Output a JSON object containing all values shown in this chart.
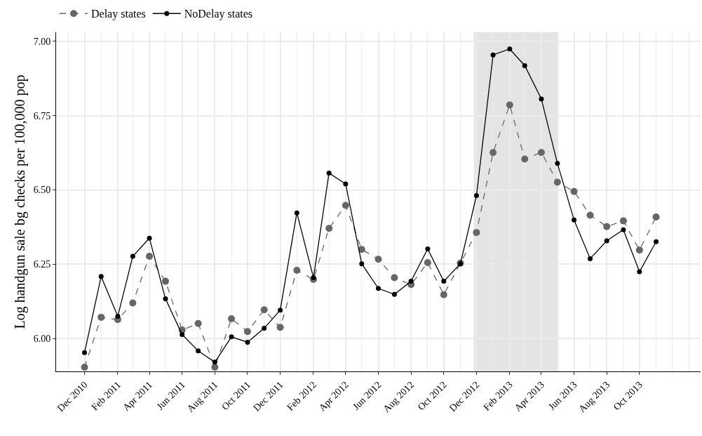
{
  "chart_data": {
    "type": "line",
    "ylabel": "Log handgun sale bg checks per 100,000 pop",
    "x": [
      "2010-12",
      "2011-01",
      "2011-02",
      "2011-03",
      "2011-04",
      "2011-05",
      "2011-06",
      "2011-07",
      "2011-08",
      "2011-09",
      "2011-10",
      "2011-11",
      "2011-12",
      "2012-01",
      "2012-02",
      "2012-03",
      "2012-04",
      "2012-05",
      "2012-06",
      "2012-07",
      "2012-08",
      "2012-09",
      "2012-10",
      "2012-11",
      "2012-12",
      "2013-01",
      "2013-02",
      "2013-03",
      "2013-04",
      "2013-05",
      "2013-06",
      "2013-07",
      "2013-08",
      "2013-09",
      "2013-10",
      "2013-11"
    ],
    "series": [
      {
        "name": "Delay states",
        "color": "#666666",
        "line_style": "dashed",
        "values": [
          5.904,
          6.072,
          6.064,
          6.12,
          6.277,
          6.193,
          6.029,
          6.051,
          5.904,
          6.067,
          6.024,
          6.097,
          6.038,
          6.23,
          6.199,
          6.371,
          6.448,
          6.3,
          6.267,
          6.205,
          6.182,
          6.256,
          6.148,
          6.254,
          6.357,
          6.626,
          6.786,
          6.604,
          6.626,
          6.526,
          6.495,
          6.415,
          6.377,
          6.396,
          6.298,
          6.409
        ]
      },
      {
        "name": "NoDelay states",
        "color": "#000000",
        "line_style": "solid",
        "values": [
          5.953,
          6.209,
          6.075,
          6.277,
          6.338,
          6.134,
          6.014,
          5.959,
          5.921,
          6.006,
          5.988,
          6.035,
          6.096,
          6.423,
          6.205,
          6.557,
          6.52,
          6.252,
          6.169,
          6.149,
          6.193,
          6.302,
          6.193,
          6.252,
          6.481,
          6.954,
          6.974,
          6.918,
          6.806,
          6.589,
          6.399,
          6.269,
          6.329,
          6.366,
          6.225,
          6.326
        ]
      }
    ],
    "xlim": [
      "2010-10-09",
      "2014-01-23"
    ],
    "xticks": [
      {
        "value": "2010-12",
        "label": "Dec 2010"
      },
      {
        "value": "2011-02",
        "label": "Feb 2011"
      },
      {
        "value": "2011-04",
        "label": "Apr 2011"
      },
      {
        "value": "2011-06",
        "label": "Jun 2011"
      },
      {
        "value": "2011-08",
        "label": "Aug 2011"
      },
      {
        "value": "2011-10",
        "label": "Oct 2011"
      },
      {
        "value": "2011-12",
        "label": "Dec 2011"
      },
      {
        "value": "2012-02",
        "label": "Feb 2012"
      },
      {
        "value": "2012-04",
        "label": "Apr 2012"
      },
      {
        "value": "2012-06",
        "label": "Jun 2012"
      },
      {
        "value": "2012-08",
        "label": "Aug 2012"
      },
      {
        "value": "2012-10",
        "label": "Oct 2012"
      },
      {
        "value": "2012-12",
        "label": "Dec 2012"
      },
      {
        "value": "2013-02",
        "label": "Feb 2013"
      },
      {
        "value": "2013-04",
        "label": "Apr 2013"
      },
      {
        "value": "2013-06",
        "label": "Jun 2013"
      },
      {
        "value": "2013-08",
        "label": "Aug 2013"
      },
      {
        "value": "2013-10",
        "label": "Oct 2013"
      }
    ],
    "ylim": [
      5.89,
      7.03
    ],
    "yticks": [
      {
        "value": 6,
        "label": "6.00"
      },
      {
        "value": 6.25,
        "label": "6.25"
      },
      {
        "value": 6.5,
        "label": "6.50"
      },
      {
        "value": 6.75,
        "label": "6.75"
      },
      {
        "value": 7,
        "label": "7.00"
      }
    ],
    "bands": [
      {
        "axis": "x",
        "from": "2012-11-26",
        "to": "2013-05-03",
        "color": "#d9d9d9"
      }
    ],
    "grid": true,
    "legend": "top left",
    "marker": "circle"
  }
}
